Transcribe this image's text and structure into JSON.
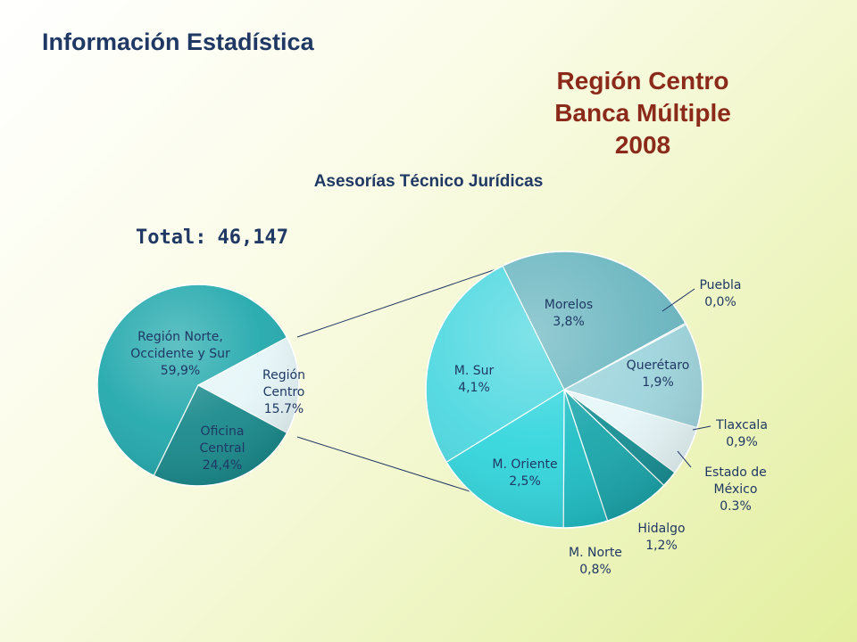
{
  "header": {
    "title": "Información Estadística"
  },
  "chart_title": {
    "line1": "Región Centro",
    "line2": "Banca Múltiple",
    "line3": "2008"
  },
  "subtitle": "Asesorías Técnico Jurídicas",
  "total": {
    "label": "Total:",
    "value": "46,147"
  },
  "colors": {
    "title_blue": "#1f3864",
    "title_red": "#8b2a1a",
    "teal_dark": "#1a8a8c",
    "teal": "#23a9ad",
    "cyan": "#33d6dd",
    "slate_teal": "#6ab6c0",
    "highlight": "#e6f6f8"
  },
  "chart_data": [
    {
      "type": "pie",
      "title": "",
      "slices": [
        {
          "label": "Región Norte, Occidente y Sur",
          "value": 59.9,
          "value_text": "59,9%",
          "color": "#23a9ad"
        },
        {
          "label": "Región Centro",
          "value": 15.7,
          "value_text": "15.7%",
          "color": "#e6f6f8"
        },
        {
          "label": "Oficina Central",
          "value": 24.4,
          "value_text": "24,4%",
          "color": "#1a8a8c"
        }
      ]
    },
    {
      "type": "pie",
      "title": "",
      "slices": [
        {
          "label": "Morelos",
          "value": 3.8,
          "value_text": "3,8%",
          "color": "#6ab6c0"
        },
        {
          "label": "Puebla",
          "value": 0.0,
          "value_text": "0,0%",
          "color": "#8fcad2"
        },
        {
          "label": "Querétaro",
          "value": 1.9,
          "value_text": "1,9%",
          "color": "#9ed4dc"
        },
        {
          "label": "Tlaxcala",
          "value": 0.9,
          "value_text": "0,9%",
          "color": "#e6f6f8"
        },
        {
          "label": "Estado de México",
          "value": 0.3,
          "value_text": "0.3%",
          "color": "#178f94"
        },
        {
          "label": "Hidalgo",
          "value": 1.2,
          "value_text": "1,2%",
          "color": "#1aa6ab"
        },
        {
          "label": "M. Norte",
          "value": 0.8,
          "value_text": "0,8%",
          "color": "#1fbfc5"
        },
        {
          "label": "M. Oriente",
          "value": 2.5,
          "value_text": "2,5%",
          "color": "#33d6dd"
        },
        {
          "label": "M. Sur",
          "value": 4.1,
          "value_text": "4,1%",
          "color": "#4fd8e0"
        }
      ]
    }
  ]
}
